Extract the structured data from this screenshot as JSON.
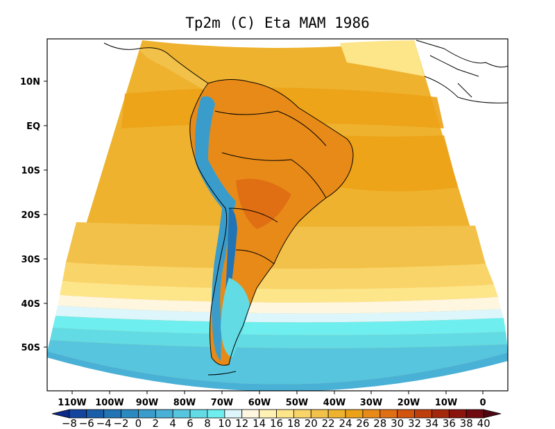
{
  "title": "Tp2m (C) Eta MAM 1986",
  "map": {
    "y_ticks": [
      "10N",
      "EQ",
      "10S",
      "20S",
      "30S",
      "40S",
      "50S"
    ],
    "x_ticks": [
      "110W",
      "100W",
      "90W",
      "80W",
      "70W",
      "60W",
      "50W",
      "40W",
      "30W",
      "20W",
      "10W",
      "0"
    ]
  },
  "colorbar": {
    "labels": [
      "-8",
      "-6",
      "-4",
      "-2",
      "0",
      "2",
      "4",
      "6",
      "8",
      "10",
      "12",
      "14",
      "16",
      "18",
      "20",
      "22",
      "24",
      "26",
      "28",
      "30",
      "32",
      "34",
      "36",
      "38",
      "40"
    ],
    "colors": [
      "#0d2a8a",
      "#13459e",
      "#1a5ea9",
      "#2274b5",
      "#2a89c0",
      "#3a9ccb",
      "#49b0d6",
      "#56c5dd",
      "#62dbe5",
      "#6feef0",
      "#dcf6fb",
      "#fff6e0",
      "#fff1b3",
      "#fde58a",
      "#f9d468",
      "#f2c14a",
      "#eeb22e",
      "#eca217",
      "#e88a18",
      "#e06f14",
      "#d2550f",
      "#bd3f0c",
      "#a3280b",
      "#8a140e",
      "#6e0a10",
      "#4e0712"
    ]
  }
}
